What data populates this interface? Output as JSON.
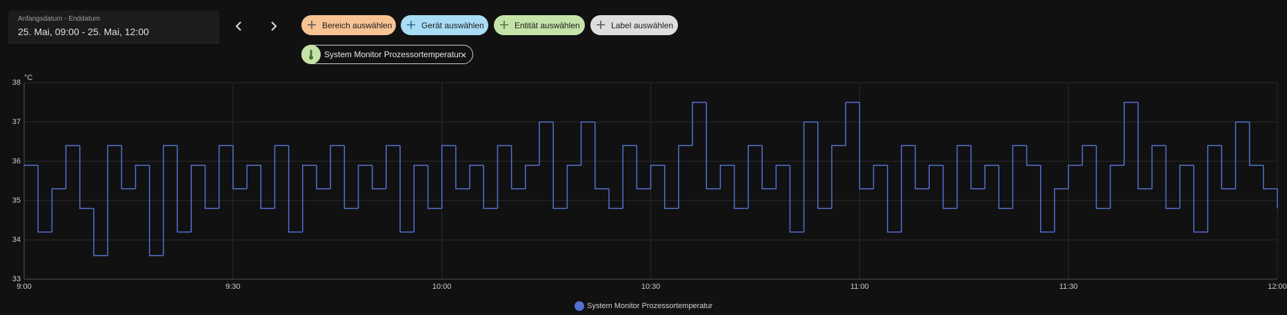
{
  "date_picker": {
    "label": "Anfangsdatum - Enddatum",
    "value": "25. Mai, 09:00 - 25. Mai, 12:00"
  },
  "target_picker": {
    "add_buttons": [
      "Bereich auswählen",
      "Gerät auswählen",
      "Entität auswählen",
      "Label auswählen"
    ],
    "selected": "System Monitor Prozessortemperatur"
  },
  "chart_data": {
    "type": "line",
    "step": true,
    "y_label": "°C",
    "x": [
      "9:00",
      "9:02",
      "9:04",
      "9:06",
      "9:08",
      "9:10",
      "9:12",
      "9:14",
      "9:16",
      "9:18",
      "9:20",
      "9:22",
      "9:24",
      "9:26",
      "9:28",
      "9:30",
      "9:32",
      "9:34",
      "9:36",
      "9:38",
      "9:40",
      "9:42",
      "9:44",
      "9:46",
      "9:48",
      "9:50",
      "9:52",
      "9:54",
      "9:56",
      "9:58",
      "10:00",
      "10:02",
      "10:04",
      "10:06",
      "10:08",
      "10:10",
      "10:12",
      "10:14",
      "10:16",
      "10:18",
      "10:20",
      "10:22",
      "10:24",
      "10:26",
      "10:28",
      "10:30",
      "10:32",
      "10:34",
      "10:36",
      "10:38",
      "10:40",
      "10:42",
      "10:44",
      "10:46",
      "10:48",
      "10:50",
      "10:52",
      "10:54",
      "10:56",
      "10:58",
      "11:00",
      "11:02",
      "11:04",
      "11:06",
      "11:08",
      "11:10",
      "11:12",
      "11:14",
      "11:16",
      "11:18",
      "11:20",
      "11:22",
      "11:24",
      "11:26",
      "11:28",
      "11:30",
      "11:32",
      "11:34",
      "11:36",
      "11:38",
      "11:40",
      "11:42",
      "11:44",
      "11:46",
      "11:48",
      "11:50",
      "11:52",
      "11:54",
      "11:56",
      "11:58",
      "12:00"
    ],
    "series": [
      {
        "name": "System Monitor Prozessortemperatur",
        "color": "#5472d3",
        "values": [
          35.9,
          34.2,
          35.3,
          36.4,
          34.8,
          33.6,
          36.4,
          35.3,
          35.9,
          33.6,
          36.4,
          34.2,
          35.9,
          34.8,
          36.4,
          35.3,
          35.9,
          34.8,
          36.4,
          34.2,
          35.9,
          35.3,
          36.4,
          34.8,
          35.9,
          35.3,
          36.4,
          34.2,
          35.9,
          34.8,
          36.4,
          35.3,
          35.9,
          34.8,
          36.4,
          35.3,
          35.9,
          37.0,
          34.8,
          35.9,
          37.0,
          35.3,
          34.8,
          36.4,
          35.3,
          35.9,
          34.8,
          36.4,
          37.5,
          35.3,
          35.9,
          34.8,
          36.4,
          35.3,
          35.9,
          34.2,
          37.0,
          34.8,
          36.4,
          37.5,
          35.3,
          35.9,
          34.2,
          36.4,
          35.3,
          35.9,
          34.8,
          36.4,
          35.3,
          35.9,
          34.8,
          36.4,
          35.9,
          34.2,
          35.3,
          35.9,
          36.4,
          34.8,
          35.9,
          37.5,
          35.3,
          36.4,
          34.8,
          35.9,
          34.2,
          36.4,
          35.3,
          37.0,
          35.9,
          35.3,
          34.8
        ]
      }
    ],
    "xlim": [
      "9:00",
      "12:00"
    ],
    "xticks": [
      "9:00",
      "9:30",
      "10:00",
      "10:30",
      "11:00",
      "11:30",
      "12:00"
    ],
    "ylim": [
      33,
      38
    ],
    "yticks": [
      33,
      34,
      35,
      36,
      37,
      38
    ],
    "grid": true
  }
}
